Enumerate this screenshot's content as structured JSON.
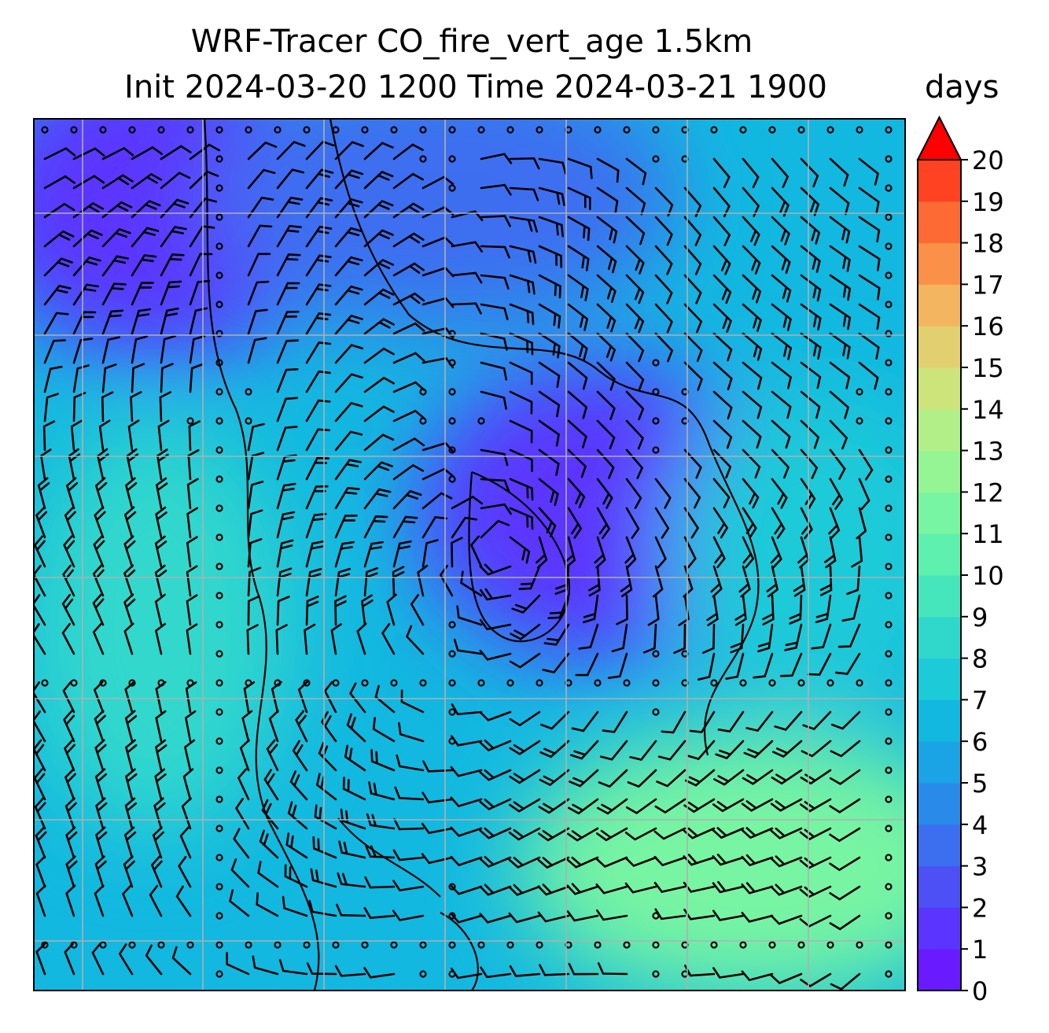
{
  "chart_data": {
    "type": "heatmap",
    "title": "WRF-Tracer CO_fire_vert_age 1.5km",
    "subtitle": "Init 2024-03-20 1200 Time 2024-03-21 1900",
    "colorbar": {
      "label": "days",
      "ticks": [
        "0",
        "1",
        "2",
        "3",
        "4",
        "5",
        "6",
        "7",
        "8",
        "9",
        "10",
        "11",
        "12",
        "13",
        "14",
        "15",
        "16",
        "17",
        "18",
        "19",
        "20"
      ],
      "range": [
        0,
        20
      ],
      "extend": "max",
      "colors": [
        "#6a1aff",
        "#5b35ff",
        "#4c50f5",
        "#3c6ef0",
        "#2a8aea",
        "#1aa3e5",
        "#12b8e0",
        "#1ccad8",
        "#30d8cc",
        "#46e6bd",
        "#5ef0ae",
        "#78f5a2",
        "#95f595",
        "#b3ef88",
        "#cde47a",
        "#e2d070",
        "#f3b560",
        "#fb9149",
        "#fd6a33",
        "#fe4222",
        "#ff1a10"
      ],
      "extend_color": "#ff0000"
    },
    "field_description_regions": [
      {
        "area": "north-west",
        "age_days": 1
      },
      {
        "area": "centre-east",
        "age_days": 1
      },
      {
        "area": "north",
        "age_days": 3
      },
      {
        "area": "west",
        "age_days": 8
      },
      {
        "area": "south-east",
        "age_days": 11
      },
      {
        "area": "east",
        "age_days": 7
      }
    ],
    "overlay": "wind barbs, coastlines and gridlines",
    "grid": true
  }
}
